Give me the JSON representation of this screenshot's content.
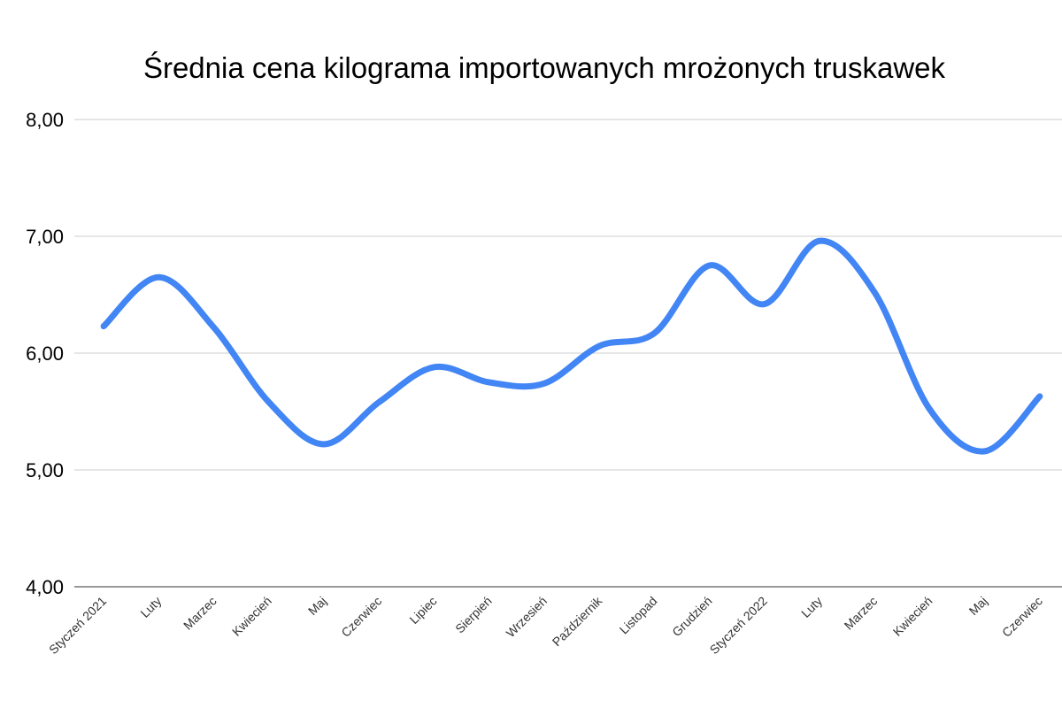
{
  "chart_data": {
    "type": "line",
    "title": "Średnia cena kilograma importowanych mrożonych truskawek",
    "xlabel": "",
    "ylabel": "",
    "ylim": [
      4,
      8
    ],
    "yticks": [
      "4,00",
      "5,00",
      "6,00",
      "7,00",
      "8,00"
    ],
    "grid": true,
    "categories": [
      "Styczeń 2021",
      "Luty",
      "Marzec",
      "Kwiecień",
      "Maj",
      "Czerwiec",
      "Lipiec",
      "Sierpień",
      "Wrzesień",
      "Październik",
      "Listopad",
      "Grudzień",
      "Styczeń 2022",
      "Luty",
      "Marzec",
      "Kwiecień",
      "Maj",
      "Czerwiec"
    ],
    "series": [
      {
        "name": "Średnia cena",
        "color": "#4285f4",
        "values": [
          6.23,
          6.65,
          6.22,
          5.58,
          5.22,
          5.58,
          5.88,
          5.75,
          5.74,
          6.06,
          6.17,
          6.75,
          6.42,
          6.96,
          6.52,
          5.52,
          5.16,
          5.63
        ]
      }
    ]
  }
}
